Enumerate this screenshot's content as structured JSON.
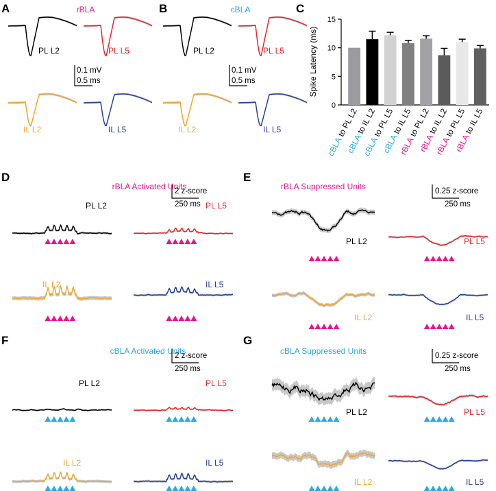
{
  "panels": {
    "A": {
      "letter": "A",
      "title": "rBLA",
      "scale_v": "0.1 mV",
      "scale_h": "0.5 ms"
    },
    "B": {
      "letter": "B",
      "title": "cBLA",
      "scale_v": "0.1 mV",
      "scale_h": "0.5 ms"
    },
    "C": {
      "letter": "C"
    },
    "D": {
      "letter": "D",
      "title": "rBLA Activated Units",
      "scale_v": "2 z-score",
      "scale_h": "250 ms"
    },
    "E": {
      "letter": "E",
      "title": "rBLA Suppressed Units",
      "scale_v": "0.25 z-score",
      "scale_h": "250 ms"
    },
    "F": {
      "letter": "F",
      "title": "cBLA Activated Units",
      "scale_v": "2 z-score",
      "scale_h": "250 ms"
    },
    "G": {
      "letter": "G",
      "title": "cBLA Suppressed Units",
      "scale_v": "0.25 z-score",
      "scale_h": "250 ms"
    }
  },
  "colors": {
    "rBLA": "#e6168c",
    "cBLA": "#29abe2",
    "PL L2": "#000000",
    "PL L5": "#e8262b",
    "IL L2": "#f2a52a",
    "IL L5": "#283f97",
    "sem": "#c8c8c8"
  },
  "trace_labels": [
    "PL L2",
    "PL L5",
    "IL L2",
    "IL L5"
  ],
  "chart_data": {
    "type": "bar",
    "ylabel": "Spike Latency (ms)",
    "ylim": [
      0,
      15
    ],
    "yticks": [
      "0",
      "5",
      "10",
      "15"
    ],
    "categories": [
      {
        "src": "cBLA",
        "rest": " to PL L2"
      },
      {
        "src": "cBLA",
        "rest": " to IL L2"
      },
      {
        "src": "cBLA",
        "rest": " to PL L5"
      },
      {
        "src": "cBLA",
        "rest": " to IL L5"
      },
      {
        "src": "rBLA",
        "rest": " to PL L2"
      },
      {
        "src": "rBLA",
        "rest": " to IL L2"
      },
      {
        "src": "rBLA",
        "rest": " to PL L5"
      },
      {
        "src": "rBLA",
        "rest": " to IL L5"
      }
    ],
    "values": [
      10.0,
      11.5,
      12.2,
      10.8,
      11.6,
      8.7,
      11.0,
      9.9
    ],
    "errors": [
      0,
      1.4,
      0.5,
      0.5,
      0.5,
      1.2,
      0.5,
      0.5
    ],
    "bar_colors": [
      "#9b9b9f",
      "#000000",
      "#d2d2d2",
      "#808080",
      "#a2a2a6",
      "#5b5b5b",
      "#e8e8e8",
      "#606060"
    ]
  },
  "stim_pulses": 5
}
